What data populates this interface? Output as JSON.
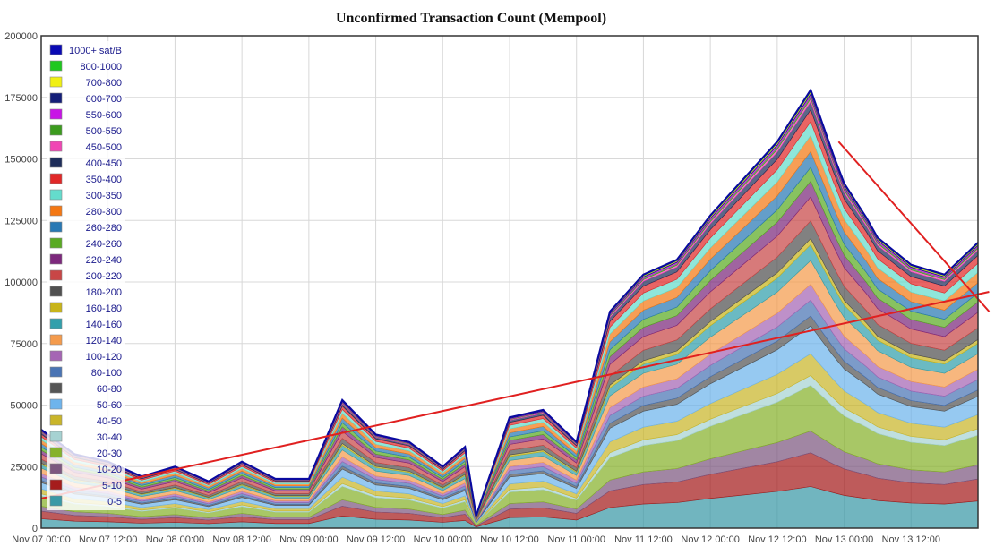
{
  "chart_data": {
    "type": "area",
    "stacked": true,
    "title": "Unconfirmed Transaction Count (Mempool)",
    "xlabel": "",
    "ylabel": "",
    "ylim": [
      0,
      200000
    ],
    "yticks": [
      "0",
      "25000",
      "50000",
      "75000",
      "100000",
      "125000",
      "150000",
      "175000",
      "200000"
    ],
    "xticks": [
      "Nov 07 00:00",
      "Nov 07 12:00",
      "Nov 08 00:00",
      "Nov 08 12:00",
      "Nov 09 00:00",
      "Nov 09 12:00",
      "Nov 10 00:00",
      "Nov 10 12:00",
      "Nov 11 00:00",
      "Nov 11 12:00",
      "Nov 12 00:00",
      "Nov 12 12:00",
      "Nov 13 00:00",
      "Nov 13 12:00"
    ],
    "x_hours": [
      0,
      6,
      12,
      18,
      24,
      30,
      36,
      42,
      48,
      54,
      60,
      66,
      72,
      76,
      78,
      84,
      90,
      96,
      102,
      108,
      114,
      120,
      126,
      132,
      138,
      142,
      144,
      148,
      150,
      156,
      162,
      168
    ],
    "total": [
      40000,
      30000,
      27000,
      21000,
      25000,
      19000,
      27000,
      20000,
      20000,
      52000,
      38000,
      35000,
      25000,
      33000,
      5000,
      45000,
      48000,
      35000,
      88000,
      103000,
      109000,
      127000,
      142000,
      157000,
      178000,
      152000,
      140000,
      126000,
      118000,
      107000,
      103000,
      116000
    ],
    "legend_position": "top-left",
    "grid": true,
    "series": [
      {
        "name": "0-5",
        "color": "#3a99a6",
        "share": 0.105
      },
      {
        "name": "5-10",
        "color": "#a51c1c",
        "share": 0.085
      },
      {
        "name": "10-20",
        "color": "#7d5880",
        "share": 0.055
      },
      {
        "name": "20-30",
        "color": "#86b22b",
        "share": 0.115
      },
      {
        "name": "30-40",
        "color": "#a6d2d2",
        "share": 0.025
      },
      {
        "name": "40-50",
        "color": "#c9b52a",
        "share": 0.055
      },
      {
        "name": "50-60",
        "color": "#6eb4ec",
        "share": 0.07
      },
      {
        "name": "60-80",
        "color": "#555555",
        "share": 0.025
      },
      {
        "name": "80-100",
        "color": "#4a74b4",
        "share": 0.04
      },
      {
        "name": "100-120",
        "color": "#a565b4",
        "share": 0.04
      },
      {
        "name": "120-140",
        "color": "#f49b4c",
        "share": 0.06
      },
      {
        "name": "140-160",
        "color": "#32a0ac",
        "share": 0.04
      },
      {
        "name": "160-180",
        "color": "#c8b41a",
        "share": 0.015
      },
      {
        "name": "180-200",
        "color": "#505050",
        "share": 0.045
      },
      {
        "name": "200-220",
        "color": "#c84646",
        "share": 0.06
      },
      {
        "name": "220-240",
        "color": "#7c287c",
        "share": 0.04
      },
      {
        "name": "240-260",
        "color": "#5aaa23",
        "share": 0.035
      },
      {
        "name": "260-280",
        "color": "#2878b4",
        "share": 0.04
      },
      {
        "name": "280-300",
        "color": "#f47814",
        "share": 0.04
      },
      {
        "name": "300-350",
        "color": "#64dccc",
        "share": 0.035
      },
      {
        "name": "350-400",
        "color": "#e12828",
        "share": 0.03
      },
      {
        "name": "400-450",
        "color": "#1e2d5a",
        "share": 0.02
      },
      {
        "name": "450-500",
        "color": "#f046b4",
        "share": 0.008
      },
      {
        "name": "500-550",
        "color": "#3c9b1e",
        "share": 0.006
      },
      {
        "name": "550-600",
        "color": "#c814e6",
        "share": 0.005
      },
      {
        "name": "600-700",
        "color": "#141e78",
        "share": 0.004
      },
      {
        "name": "700-800",
        "color": "#f0f014",
        "share": 0.003
      },
      {
        "name": "800-1000",
        "color": "#1ec81e",
        "share": 0.002
      },
      {
        "name": "1000+ sat/B",
        "color": "#0a0ab4",
        "share": 0.002
      }
    ],
    "annotations": [
      {
        "type": "trend-line",
        "color": "#e02020",
        "from": {
          "x_hours": 0,
          "y": 12000
        },
        "to": {
          "x_hours": 170,
          "y": 96000
        }
      },
      {
        "type": "trend-line",
        "color": "#e02020",
        "from": {
          "x_hours": 143,
          "y": 157000
        },
        "to": {
          "x_hours": 170,
          "y": 88000
        }
      }
    ]
  }
}
